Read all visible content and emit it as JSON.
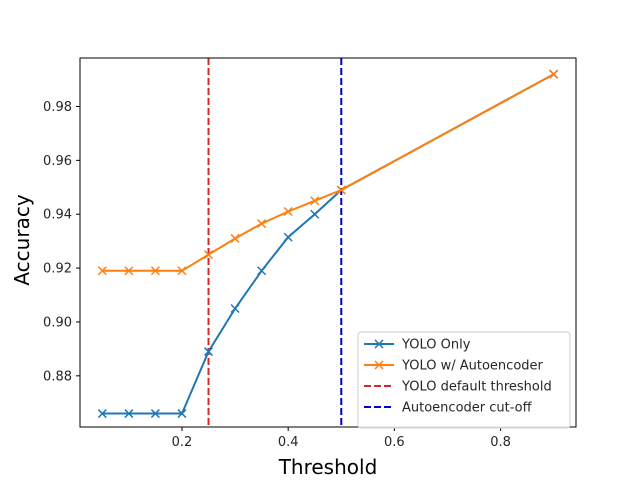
{
  "chart_data": {
    "type": "line",
    "title": "",
    "xlabel": "Threshold",
    "ylabel": "Accuracy",
    "xlim": [
      0.008,
      0.942
    ],
    "ylim": [
      0.861,
      0.998
    ],
    "xticks": [
      0.2,
      0.4,
      0.6,
      0.8
    ],
    "yticks": [
      0.88,
      0.9,
      0.92,
      0.94,
      0.96,
      0.98
    ],
    "grid": false,
    "legend_position": "lower-right",
    "series": [
      {
        "name": "YOLO Only",
        "color": "#1f77b4",
        "marker": "x",
        "x": [
          0.05,
          0.1,
          0.15,
          0.2,
          0.25,
          0.3,
          0.35,
          0.4,
          0.45,
          0.5,
          0.9
        ],
        "y": [
          0.866,
          0.866,
          0.866,
          0.866,
          0.889,
          0.905,
          0.919,
          0.9315,
          0.94,
          0.949,
          0.992
        ]
      },
      {
        "name": "YOLO w/ Autoencoder",
        "color": "#ff7f0e",
        "marker": "x",
        "x": [
          0.05,
          0.1,
          0.15,
          0.2,
          0.25,
          0.3,
          0.35,
          0.4,
          0.45,
          0.5,
          0.9
        ],
        "y": [
          0.919,
          0.919,
          0.919,
          0.919,
          0.925,
          0.931,
          0.9365,
          0.941,
          0.945,
          0.949,
          0.992
        ]
      }
    ],
    "vlines": [
      {
        "name": "YOLO default threshold",
        "x": 0.25,
        "color": "#d62728",
        "style": "dashed"
      },
      {
        "name": "Autoencoder cut-off",
        "x": 0.5,
        "color": "#0000cc",
        "style": "dashed"
      }
    ]
  }
}
